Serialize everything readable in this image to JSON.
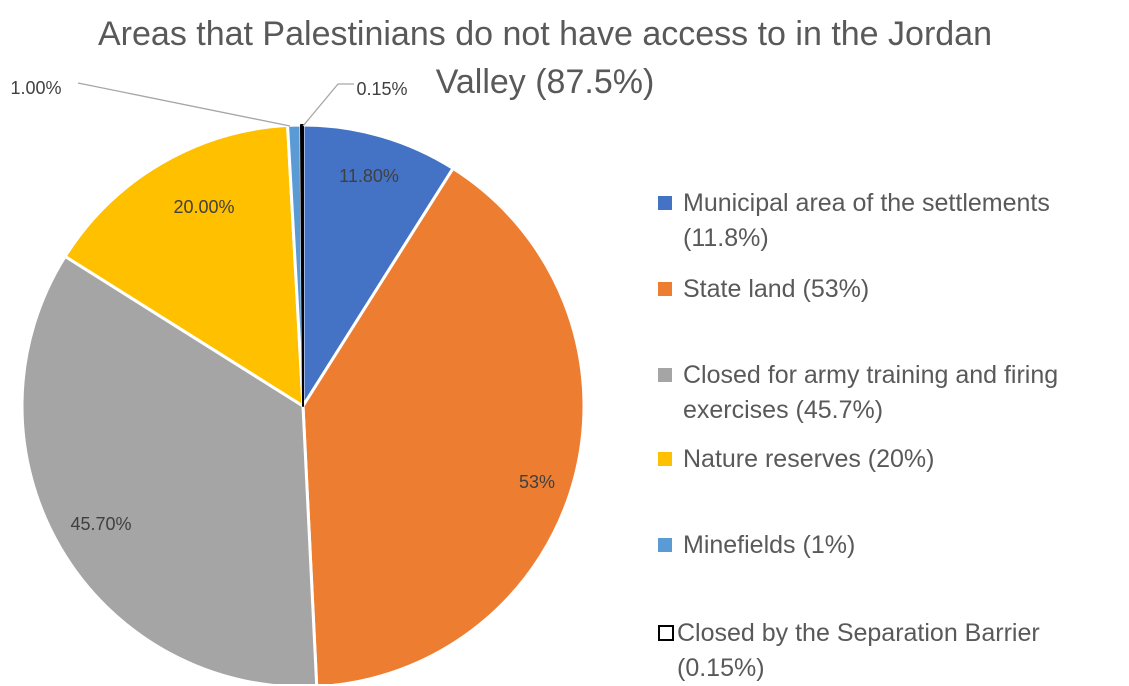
{
  "title": "Areas that Palestinians do not have access to in the Jordan Valley (87.5%)",
  "colors": {
    "blue": "#4472c4",
    "orange": "#ed7d31",
    "gray": "#a5a5a5",
    "yellow": "#ffc000",
    "light_blue": "#5b9bd5",
    "white": "#ffffff",
    "outline": "#000000"
  },
  "chart_data": {
    "type": "pie",
    "title": "Areas that Palestinians do not have access to in the Jordan Valley (87.5%)",
    "slices": [
      {
        "legend": "Municipal area of the settlements (11.8%)",
        "value": 11.8,
        "label": "11.80%",
        "color": "#4472c4"
      },
      {
        "legend": "State land (53%)",
        "value": 53,
        "label": "53%",
        "color": "#ed7d31"
      },
      {
        "legend": "Closed for army training and firing exercises (45.7%)",
        "value": 45.7,
        "label": "45.70%",
        "color": "#a5a5a5"
      },
      {
        "legend": "Nature reserves (20%)",
        "value": 20,
        "label": "20.00%",
        "color": "#ffc000"
      },
      {
        "legend": "Minefields (1%)",
        "value": 1,
        "label": "1.00%",
        "color": "#5b9bd5"
      },
      {
        "legend": "Closed by the Separation Barrier (0.15%)",
        "value": 0.15,
        "label": "0.15%",
        "color": "#ffffff"
      }
    ],
    "legend_position": "right"
  }
}
